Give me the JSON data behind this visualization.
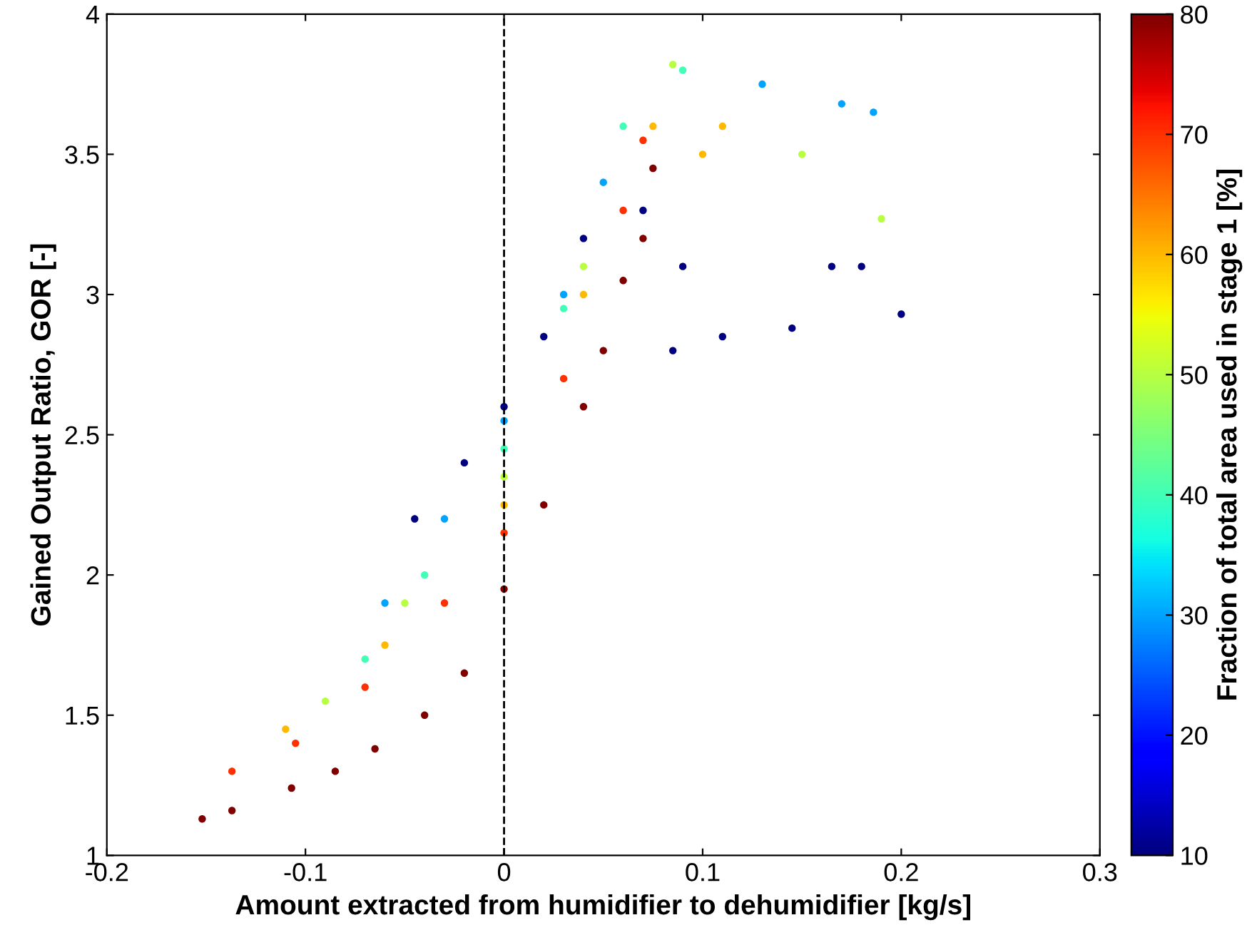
{
  "chart_data": {
    "type": "scatter",
    "xlabel": "Amount extracted from humidifier to dehumidifier [kg/s]",
    "ylabel": "Gained Output Ratio, GOR [-]",
    "clabel": "Fraction of total area used in stage 1 [%]",
    "xlim": [
      -0.2,
      0.3
    ],
    "xticks": [
      -0.2,
      -0.1,
      0,
      0.1,
      0.2,
      0.3
    ],
    "ylim": [
      1,
      4
    ],
    "yticks": [
      1,
      1.5,
      2,
      2.5,
      3,
      3.5,
      4
    ],
    "clim": [
      10,
      80
    ],
    "cticks": [
      10,
      20,
      30,
      40,
      50,
      60,
      70,
      80
    ],
    "marker": "circle",
    "grid": false,
    "ref_lines": [
      {
        "axis": "x",
        "value": 0,
        "color": "#000000",
        "line_style": "dashed"
      }
    ],
    "series": [
      {
        "x": [
          -0.152,
          -0.137,
          -0.107,
          -0.085,
          -0.065,
          -0.04,
          -0.02,
          0,
          0.02,
          0.04,
          0.05,
          0.06,
          0.07,
          0.075
        ],
        "values": [
          1.13,
          1.16,
          1.24,
          1.3,
          1.38,
          1.5,
          1.65,
          1.95,
          2.25,
          2.6,
          2.8,
          3.05,
          3.2,
          3.45
        ],
        "cvalues": [
          80,
          80,
          80,
          80,
          80,
          80,
          80,
          80,
          80,
          80,
          80,
          80,
          80,
          80
        ]
      },
      {
        "x": [
          -0.137,
          -0.105,
          -0.07,
          -0.03,
          0,
          0.03,
          0.06,
          0.07
        ],
        "values": [
          1.3,
          1.4,
          1.6,
          1.9,
          2.15,
          2.7,
          3.3,
          3.55
        ],
        "cvalues": [
          70,
          70,
          70,
          70,
          70,
          70,
          70,
          70
        ]
      },
      {
        "x": [
          -0.11,
          -0.06,
          0,
          0.04,
          0.075,
          0.1,
          0.11
        ],
        "values": [
          1.45,
          1.75,
          2.25,
          3.0,
          3.6,
          3.5,
          3.6
        ],
        "cvalues": [
          60,
          60,
          60,
          60,
          60,
          60,
          60
        ]
      },
      {
        "x": [
          -0.09,
          -0.05,
          0,
          0.04,
          0.085,
          0.15,
          0.19
        ],
        "values": [
          1.55,
          1.9,
          2.35,
          3.1,
          3.82,
          3.5,
          3.27
        ],
        "cvalues": [
          50,
          50,
          50,
          50,
          50,
          50,
          50
        ]
      },
      {
        "x": [
          -0.07,
          -0.04,
          0,
          0.03,
          0.06,
          0.09
        ],
        "values": [
          1.7,
          2.0,
          2.45,
          2.95,
          3.6,
          3.8
        ],
        "cvalues": [
          40,
          40,
          40,
          40,
          40,
          40
        ]
      },
      {
        "x": [
          -0.06,
          -0.03,
          0,
          0.03,
          0.05,
          0.13,
          0.17,
          0.186
        ],
        "values": [
          1.9,
          2.2,
          2.55,
          3.0,
          3.4,
          3.75,
          3.68,
          3.65
        ],
        "cvalues": [
          30,
          30,
          30,
          30,
          30,
          30,
          30,
          30
        ]
      },
      {
        "x": [
          -0.045,
          -0.02,
          0,
          0.02,
          0.04,
          0.07,
          0.09,
          0.11,
          0.145,
          0.165,
          0.18,
          0.2,
          0.085
        ],
        "values": [
          2.2,
          2.4,
          2.6,
          2.85,
          3.2,
          3.3,
          3.1,
          2.85,
          2.88,
          3.1,
          3.1,
          2.93,
          2.8
        ],
        "cvalues": [
          10,
          10,
          10,
          10,
          10,
          10,
          10,
          10,
          10,
          10,
          10,
          10,
          10
        ]
      }
    ]
  }
}
